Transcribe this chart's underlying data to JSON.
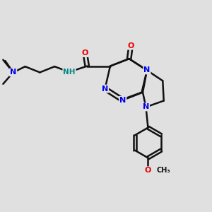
{
  "bg_color": "#e0e0e0",
  "atom_color_N": "#0000ee",
  "atom_color_O": "#ee0000",
  "atom_color_H": "#008888",
  "bond_color": "#111111",
  "bond_width": 1.8,
  "xlim": [
    0,
    10
  ],
  "ylim": [
    0,
    10
  ]
}
